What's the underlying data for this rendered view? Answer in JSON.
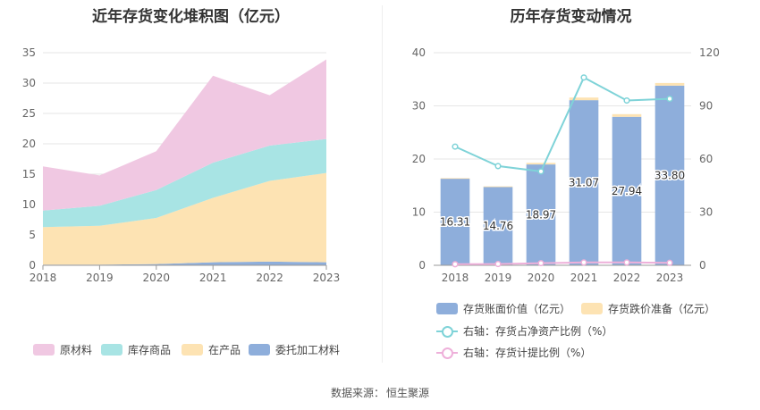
{
  "left_chart": {
    "title": "近年存货变化堆积图（亿元）",
    "chart_data": {
      "type": "area",
      "stacked": true,
      "categories": [
        "2018",
        "2019",
        "2020",
        "2021",
        "2022",
        "2023"
      ],
      "ylim": [
        0,
        35
      ],
      "yticks": [
        0,
        5,
        10,
        15,
        20,
        25,
        30,
        35
      ],
      "legend_position": "bottom",
      "series": [
        {
          "name": "委托加工材料",
          "color": "#8eaedb",
          "values": [
            0.1,
            0.1,
            0.2,
            0.5,
            0.6,
            0.5
          ]
        },
        {
          "name": "在产品",
          "color": "#fde3b3",
          "values": [
            6.2,
            6.4,
            7.6,
            10.6,
            13.3,
            14.7
          ]
        },
        {
          "name": "库存商品",
          "color": "#a8e4e4",
          "values": [
            2.7,
            3.3,
            4.6,
            5.8,
            5.8,
            5.6
          ]
        },
        {
          "name": "原材料",
          "color": "#f0c8e2",
          "values": [
            7.3,
            5.0,
            6.4,
            14.3,
            8.3,
            13.1
          ]
        }
      ]
    }
  },
  "right_chart": {
    "title": "历年存货变动情况",
    "chart_data": {
      "type": "bar",
      "categories": [
        "2018",
        "2019",
        "2020",
        "2021",
        "2022",
        "2023"
      ],
      "ylim_left": [
        0,
        40
      ],
      "yticks_left": [
        0,
        10,
        20,
        30,
        40
      ],
      "ylim_right": [
        0,
        120
      ],
      "yticks_right": [
        0,
        30,
        60,
        90,
        120
      ],
      "legend_position": "bottom",
      "bars_stacked": true,
      "series": [
        {
          "name": "存货账面价值（亿元）",
          "type": "bar",
          "axis": "left",
          "color": "#8eaedb",
          "values": [
            16.31,
            14.76,
            18.97,
            31.07,
            27.94,
            33.8
          ],
          "labels": [
            "16.31",
            "14.76",
            "18.97",
            "31.07",
            "27.94",
            "33.80"
          ]
        },
        {
          "name": "存货跌价准备（亿元）",
          "type": "bar",
          "axis": "left",
          "color": "#fde3b3",
          "values": [
            0.1,
            0.1,
            0.3,
            0.5,
            0.5,
            0.5
          ]
        },
        {
          "name": "右轴：存货占净资产比例（%）",
          "type": "line",
          "axis": "right",
          "color": "#7fd3d8",
          "values": [
            67,
            56,
            53,
            106,
            93,
            94
          ]
        },
        {
          "name": "右轴：存货计提比例（%）",
          "type": "line",
          "axis": "right",
          "color": "#eeb0da",
          "values": [
            0.6,
            0.7,
            1.2,
            1.6,
            1.6,
            1.4
          ]
        }
      ]
    }
  },
  "source": {
    "label": "数据来源：",
    "value": "恒生聚源"
  }
}
